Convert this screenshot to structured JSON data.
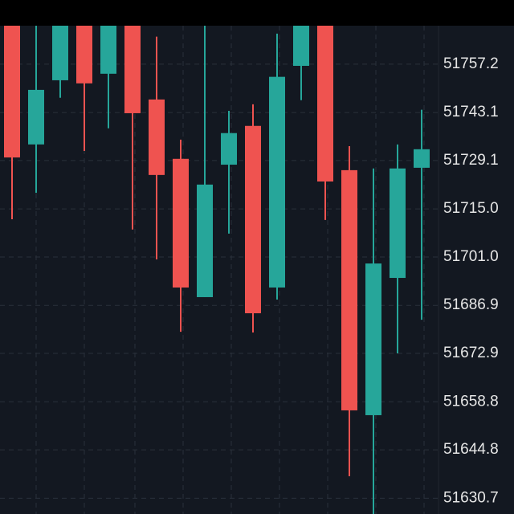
{
  "chart_data": {
    "type": "candlestick",
    "open": [
      51770.1,
      51733.8,
      51752.5,
      51770.1,
      51754.4,
      51770.1,
      51746.9,
      51729.6,
      51689.3,
      51727.9,
      51739.2,
      51692.1,
      51756.7,
      51770.1,
      51726.3,
      51654.9,
      51694.9,
      51727.0
    ],
    "high": [
      51771.3,
      51771.3,
      51771.3,
      51771.3,
      51771.3,
      51771.3,
      51765.2,
      51735.2,
      51771.3,
      51743.6,
      51745.5,
      51766.1,
      51771.3,
      51771.3,
      51733.3,
      51726.8,
      51733.8,
      51743.9
    ],
    "low": [
      51712.0,
      51719.7,
      51747.4,
      51731.9,
      51738.5,
      51709.0,
      51700.3,
      51679.2,
      51689.3,
      51707.8,
      51679.0,
      51688.6,
      51746.7,
      51711.8,
      51637.1,
      51623.7,
      51672.9,
      51682.7
    ],
    "close": [
      51730.0,
      51749.7,
      51770.1,
      51751.6,
      51770.1,
      51742.9,
      51724.9,
      51692.1,
      51722.1,
      51737.1,
      51684.6,
      51753.5,
      51770.1,
      51723.0,
      51656.3,
      51699.1,
      51726.8,
      51732.4
    ],
    "up_color": "#26a69a",
    "down_color": "#ef5350",
    "ylim": [
      51626.1,
      51768.4
    ],
    "yticks": [
      51757.2,
      51743.1,
      51729.1,
      {
        "value": 51715,
        "label": "51715.0"
      },
      {
        "value": 51701,
        "label": "51701.0"
      },
      51686.9,
      51672.9,
      51658.8,
      51644.8,
      51630.7
    ],
    "grid": true
  }
}
